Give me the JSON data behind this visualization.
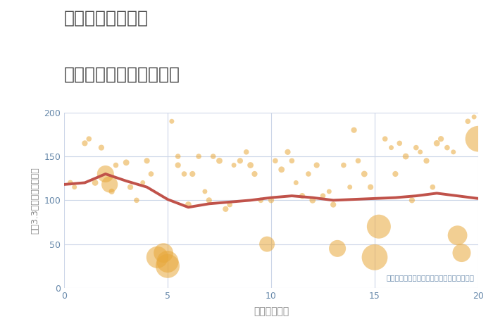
{
  "title_line1": "奈良県学園前駅の",
  "title_line2": "駅距離別中古戸建て価格",
  "xlabel": "駅距離（分）",
  "ylabel": "坪（3.3㎡）単価（万円）",
  "annotation": "円の大きさは、取引のあった物件面積を示す",
  "xlim": [
    0,
    20
  ],
  "ylim": [
    0,
    200
  ],
  "xticks": [
    0,
    5,
    10,
    15,
    20
  ],
  "yticks": [
    0,
    50,
    100,
    150,
    200
  ],
  "background_color": "#ffffff",
  "grid_color": "#ccd6e8",
  "bubble_color": "#E8A83A",
  "bubble_alpha": 0.55,
  "line_color": "#C0524A",
  "line_width": 2.8,
  "title_color": "#444444",
  "axis_color": "#888888",
  "tick_color": "#6688aa",
  "annotation_color": "#7090B0",
  "trend_x": [
    0,
    1,
    2,
    3,
    4,
    5,
    6,
    7,
    8,
    9,
    10,
    11,
    12,
    13,
    14,
    15,
    16,
    17,
    18,
    19,
    20
  ],
  "trend_y": [
    118,
    120,
    130,
    122,
    115,
    101,
    92,
    96,
    98,
    100,
    103,
    105,
    103,
    100,
    101,
    102,
    103,
    105,
    108,
    105,
    102
  ],
  "scatter_x": [
    0.3,
    0.5,
    1.0,
    1.2,
    1.5,
    1.8,
    2.0,
    2.2,
    2.3,
    2.5,
    3.0,
    3.2,
    3.5,
    3.8,
    4.0,
    4.2,
    4.5,
    4.8,
    5.0,
    5.0,
    5.2,
    5.5,
    5.5,
    5.8,
    6.0,
    6.2,
    6.5,
    6.8,
    7.0,
    7.2,
    7.5,
    7.8,
    8.0,
    8.2,
    8.5,
    8.8,
    9.0,
    9.2,
    9.5,
    9.8,
    10.0,
    10.2,
    10.5,
    10.8,
    11.0,
    11.2,
    11.5,
    11.8,
    12.0,
    12.2,
    12.5,
    12.8,
    13.0,
    13.2,
    13.5,
    13.8,
    14.0,
    14.2,
    14.5,
    14.8,
    15.0,
    15.2,
    15.5,
    15.8,
    16.0,
    16.2,
    16.5,
    16.8,
    17.0,
    17.2,
    17.5,
    17.8,
    18.0,
    18.2,
    18.5,
    18.8,
    19.0,
    19.2,
    19.5,
    19.8,
    20.0
  ],
  "scatter_y": [
    120,
    115,
    165,
    170,
    120,
    160,
    130,
    118,
    110,
    140,
    143,
    115,
    100,
    120,
    145,
    130,
    35,
    40,
    25,
    30,
    190,
    150,
    140,
    130,
    95,
    130,
    150,
    110,
    100,
    150,
    145,
    90,
    95,
    140,
    145,
    155,
    140,
    130,
    100,
    50,
    100,
    145,
    135,
    155,
    145,
    120,
    105,
    130,
    100,
    140,
    105,
    110,
    95,
    45,
    140,
    115,
    180,
    145,
    130,
    115,
    35,
    70,
    170,
    160,
    130,
    165,
    150,
    100,
    160,
    155,
    145,
    115,
    165,
    170,
    160,
    155,
    60,
    40,
    190,
    195,
    170
  ],
  "scatter_size": [
    30,
    25,
    35,
    30,
    40,
    35,
    300,
    280,
    35,
    30,
    40,
    35,
    30,
    25,
    35,
    30,
    500,
    400,
    600,
    500,
    25,
    30,
    35,
    30,
    40,
    35,
    30,
    25,
    35,
    30,
    40,
    35,
    30,
    25,
    35,
    30,
    40,
    35,
    30,
    250,
    35,
    30,
    40,
    35,
    30,
    25,
    35,
    30,
    40,
    35,
    30,
    25,
    35,
    300,
    30,
    25,
    35,
    30,
    40,
    35,
    700,
    600,
    30,
    25,
    35,
    30,
    40,
    35,
    30,
    25,
    35,
    30,
    40,
    35,
    30,
    25,
    400,
    350,
    30,
    25,
    700
  ]
}
